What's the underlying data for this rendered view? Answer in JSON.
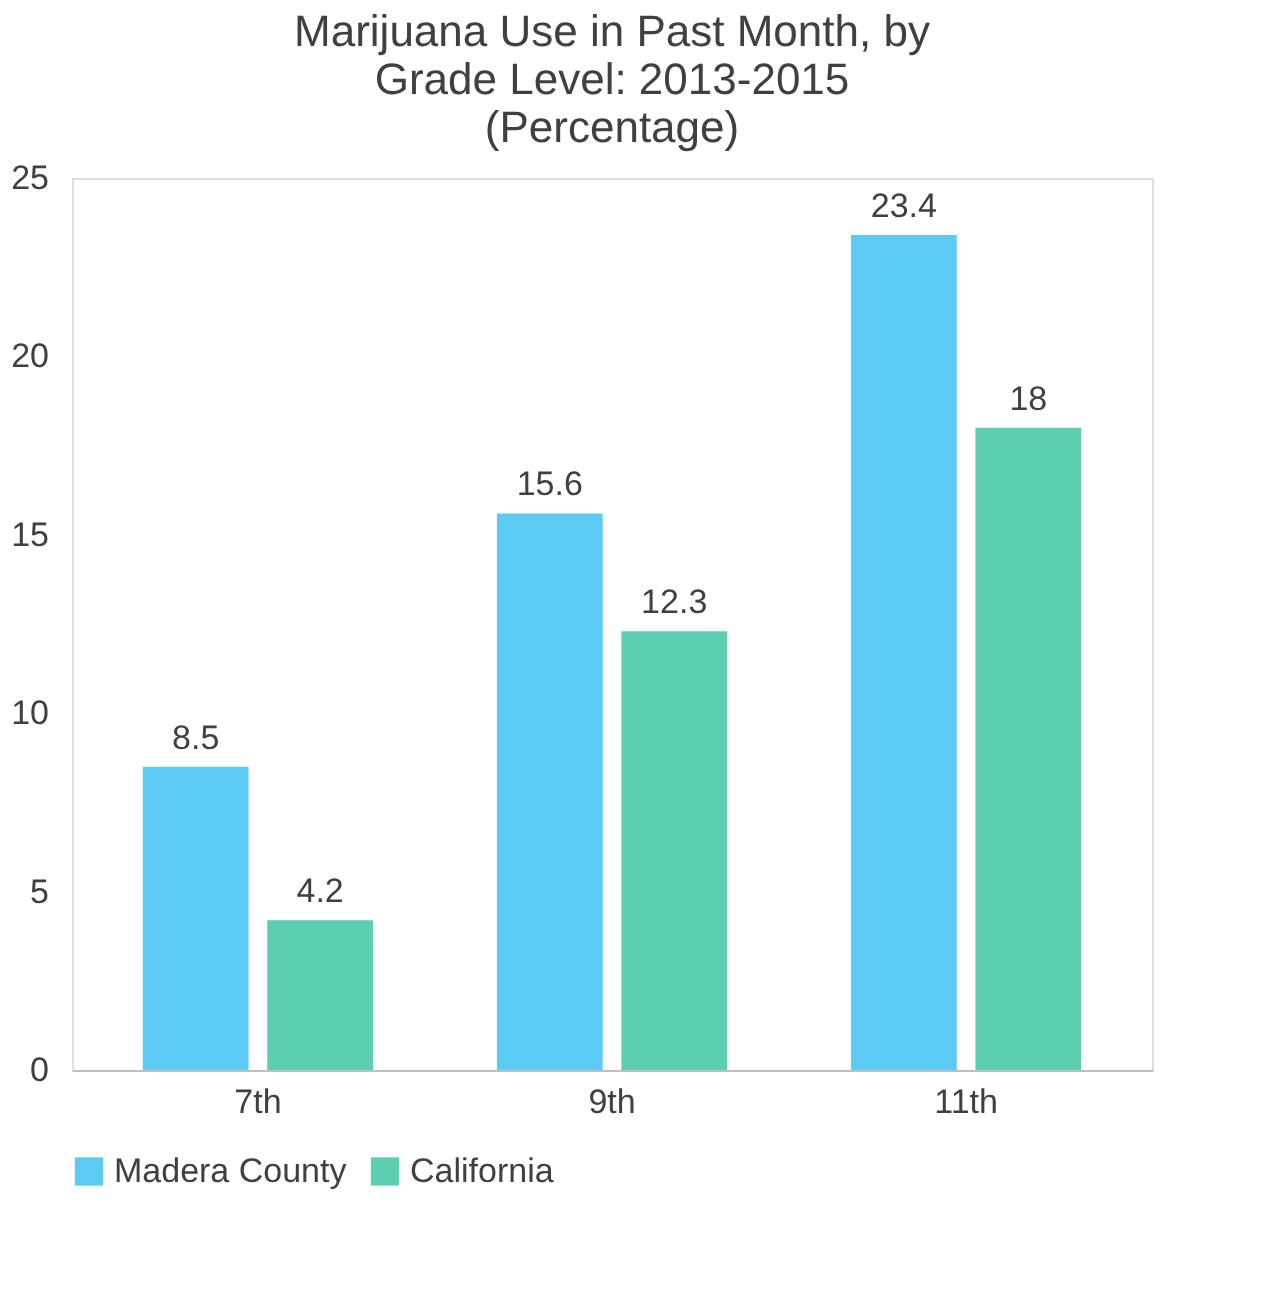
{
  "chart_data": {
    "type": "bar",
    "title": "Marijuana Use in Past Month, by Grade Level: 2013-2015 (Percentage)",
    "categories": [
      "7th",
      "9th",
      "11th"
    ],
    "series": [
      {
        "name": "Madera County",
        "color": "#5bcbf5",
        "values": [
          8.5,
          15.6,
          23.4
        ]
      },
      {
        "name": "California",
        "color": "#5ccfb0",
        "values": [
          4.2,
          12.3,
          18
        ]
      }
    ],
    "ylim": [
      0,
      25
    ],
    "yticks": [
      0,
      5,
      10,
      15,
      20,
      25
    ],
    "grid": false,
    "legend": "bottom",
    "data_labels": true
  }
}
